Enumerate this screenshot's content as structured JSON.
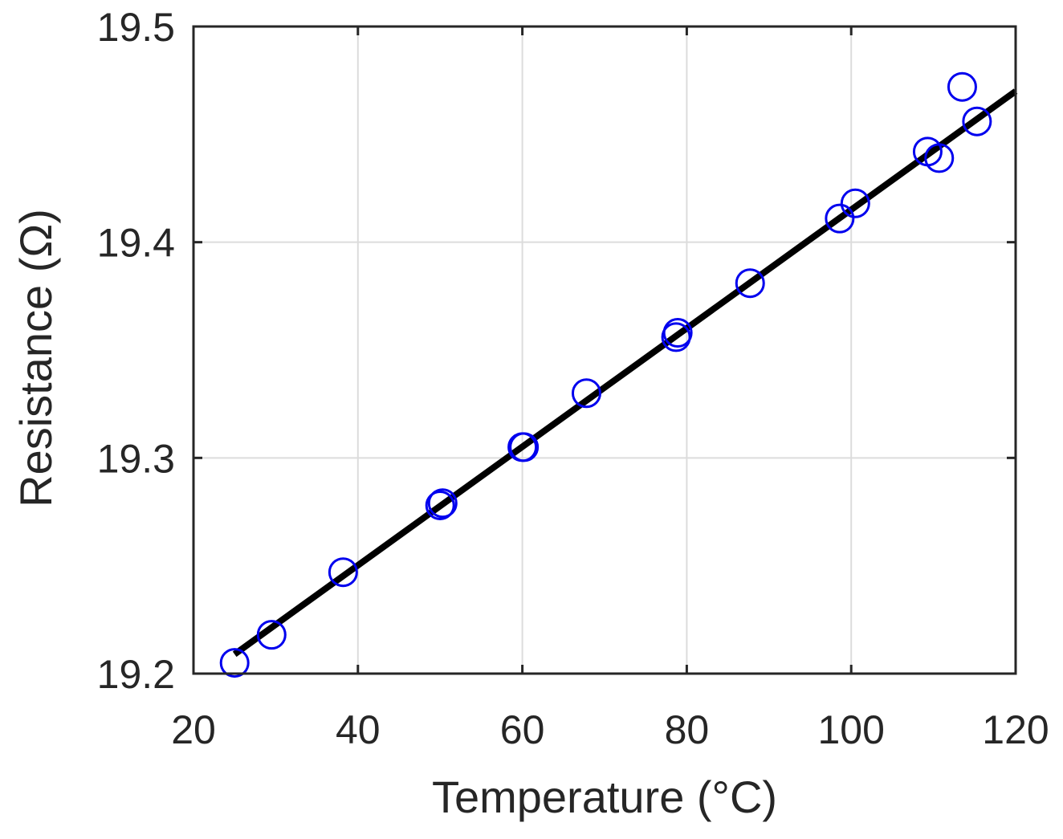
{
  "chart_data": {
    "type": "scatter",
    "title": "",
    "xlabel": "Temperature (°C)",
    "ylabel": "Resistance (Ω)",
    "xlim": [
      20,
      120
    ],
    "ylim": [
      19.2,
      19.5
    ],
    "xticks": [
      "20",
      "40",
      "60",
      "80",
      "100",
      "120"
    ],
    "yticks": [
      "19.2",
      "19.3",
      "19.4",
      "19.5"
    ],
    "grid": true,
    "legend": "none",
    "series": [
      {
        "kind": "scatter",
        "marker": "circle-open",
        "color": "#0000ee",
        "points": [
          [
            25.0,
            19.205
          ],
          [
            29.5,
            19.218
          ],
          [
            38.2,
            19.247
          ],
          [
            50.0,
            19.278
          ],
          [
            50.3,
            19.279
          ],
          [
            60.0,
            19.305
          ],
          [
            60.2,
            19.305
          ],
          [
            67.8,
            19.33
          ],
          [
            78.7,
            19.356
          ],
          [
            78.9,
            19.358
          ],
          [
            87.7,
            19.381
          ],
          [
            98.6,
            19.411
          ],
          [
            100.5,
            19.418
          ],
          [
            109.3,
            19.442
          ],
          [
            110.7,
            19.439
          ],
          [
            113.5,
            19.472
          ],
          [
            115.3,
            19.456
          ]
        ]
      },
      {
        "kind": "line",
        "color": "#000000",
        "points": [
          [
            25.0,
            19.209
          ],
          [
            120.0,
            19.47
          ]
        ]
      }
    ]
  }
}
